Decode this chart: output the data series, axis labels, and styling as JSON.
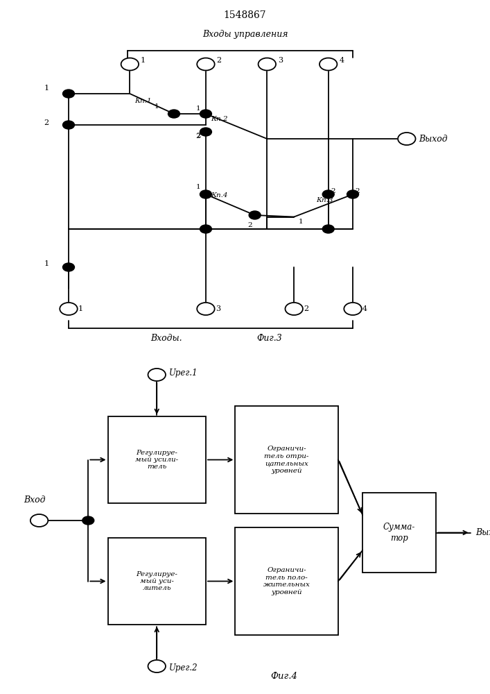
{
  "title": "1548867",
  "bg_color": "#ffffff",
  "fig3": {
    "label_top": "Входы управления",
    "label_bottom": "Входы.",
    "label_fig": "Фиг.3",
    "label_vyhod": "Выход"
  },
  "fig4": {
    "label_fig": "Фиг.4",
    "label_vhod": "Вход",
    "label_vyhod": "Вых.",
    "label_ureg1": "Uрег.1",
    "label_ureg2": "Uрег.2",
    "box1_text": "Регулируе-\nмый усили-\nтель",
    "box2_text": "Ограничи-\nтель отри-\nцательных\nуровней",
    "box3_text": "Регулируе-\nмый уси-\nлитель",
    "box4_text": "Ограничи-\nтель поло-\nжительных\nуровней",
    "summ_text": "Сумма-\nтор"
  }
}
